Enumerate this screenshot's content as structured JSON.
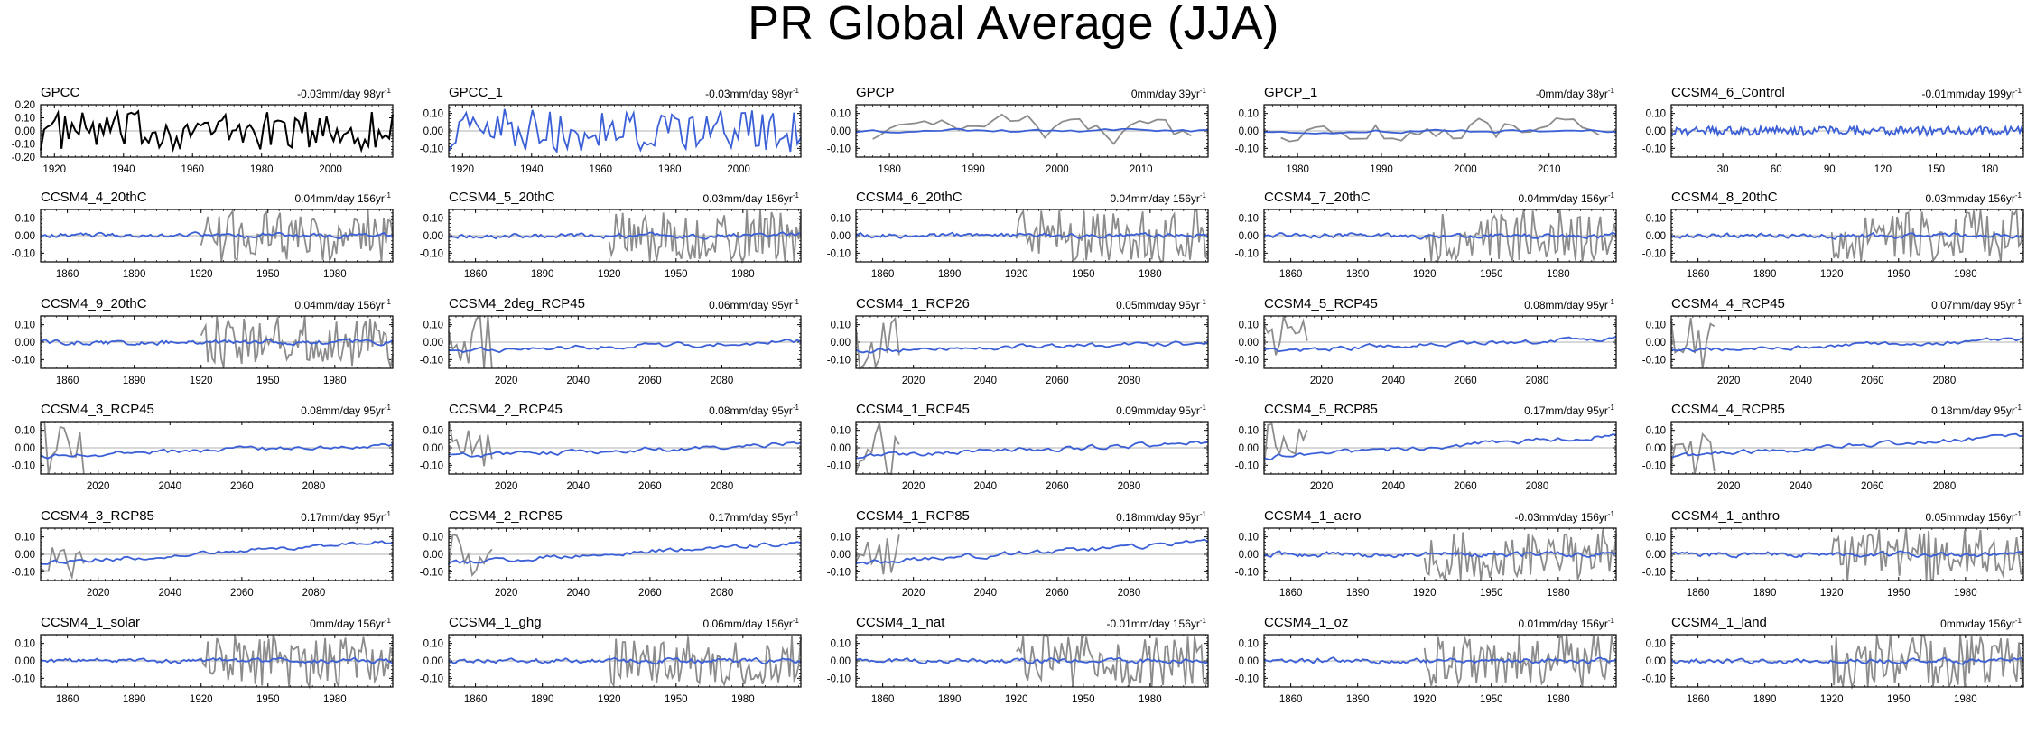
{
  "title": "PR Global Average (JJA)",
  "colors": {
    "obs": "#000000",
    "model": "#3b5fd6",
    "overlay": "#8c8c8c",
    "zero": "#b0b0b0"
  },
  "y_tick_labels_gpcc": [
    "0.20",
    "0.10",
    "0.00",
    "-0.10",
    "-0.20"
  ],
  "y_tick_labels_std": [
    "0.10",
    "0.00",
    "-0.10"
  ],
  "chart_data": [
    {
      "name": "GPCC",
      "trend": "-0.03mm/day 98yr",
      "trend_sup": "-1",
      "type": "line",
      "x_range": [
        1916,
        2018
      ],
      "x_ticks": [
        "1920",
        "1940",
        "1960",
        "1980",
        "2000"
      ],
      "ylim": [
        -0.2,
        0.2
      ],
      "obs_only": true
    },
    {
      "name": "GPCC_1",
      "trend": "-0.03mm/day 98yr",
      "trend_sup": "-1",
      "type": "line",
      "x_range": [
        1916,
        2018
      ],
      "x_ticks": [
        "1920",
        "1940",
        "1960",
        "1980",
        "2000"
      ],
      "ylim": [
        -0.15,
        0.15
      ],
      "model_only": true
    },
    {
      "name": "GPCP",
      "trend": "0mm/day 39yr",
      "trend_sup": "-1",
      "type": "line",
      "x_range": [
        1976,
        2018
      ],
      "x_ticks": [
        "1980",
        "1990",
        "2000",
        "2010"
      ],
      "ylim": [
        -0.15,
        0.15
      ]
    },
    {
      "name": "GPCP_1",
      "trend": "-0mm/day 38yr",
      "trend_sup": "-1",
      "type": "line",
      "x_range": [
        1976,
        2018
      ],
      "x_ticks": [
        "1980",
        "1990",
        "2000",
        "2010"
      ],
      "ylim": [
        -0.15,
        0.15
      ]
    },
    {
      "name": "CCSM4_6_Control",
      "trend": "-0.01mm/day 199yr",
      "trend_sup": "-1",
      "type": "line",
      "x_range": [
        1,
        199
      ],
      "x_ticks": [
        "30",
        "60",
        "90",
        "120",
        "150",
        "180"
      ],
      "ylim": [
        -0.15,
        0.15
      ],
      "model_only": true
    },
    {
      "name": "CCSM4_4_20thC",
      "trend": "0.04mm/day 156yr",
      "trend_sup": "-1",
      "type": "line",
      "x_range": [
        1848,
        2006
      ],
      "x_ticks": [
        "1860",
        "1890",
        "1920",
        "1950",
        "1980"
      ],
      "ylim": [
        -0.15,
        0.15
      ]
    },
    {
      "name": "CCSM4_5_20thC",
      "trend": "0.03mm/day 156yr",
      "trend_sup": "-1",
      "type": "line",
      "x_range": [
        1848,
        2006
      ],
      "x_ticks": [
        "1860",
        "1890",
        "1920",
        "1950",
        "1980"
      ],
      "ylim": [
        -0.15,
        0.15
      ]
    },
    {
      "name": "CCSM4_6_20thC",
      "trend": "0.04mm/day 156yr",
      "trend_sup": "-1",
      "type": "line",
      "x_range": [
        1848,
        2006
      ],
      "x_ticks": [
        "1860",
        "1890",
        "1920",
        "1950",
        "1980"
      ],
      "ylim": [
        -0.15,
        0.15
      ]
    },
    {
      "name": "CCSM4_7_20thC",
      "trend": "0.04mm/day 156yr",
      "trend_sup": "-1",
      "type": "line",
      "x_range": [
        1848,
        2006
      ],
      "x_ticks": [
        "1860",
        "1890",
        "1920",
        "1950",
        "1980"
      ],
      "ylim": [
        -0.15,
        0.15
      ]
    },
    {
      "name": "CCSM4_8_20thC",
      "trend": "0.03mm/day 156yr",
      "trend_sup": "-1",
      "type": "line",
      "x_range": [
        1848,
        2006
      ],
      "x_ticks": [
        "1860",
        "1890",
        "1920",
        "1950",
        "1980"
      ],
      "ylim": [
        -0.15,
        0.15
      ]
    },
    {
      "name": "CCSM4_9_20thC",
      "trend": "0.04mm/day 156yr",
      "trend_sup": "-1",
      "type": "line",
      "x_range": [
        1848,
        2006
      ],
      "x_ticks": [
        "1860",
        "1890",
        "1920",
        "1950",
        "1980"
      ],
      "ylim": [
        -0.15,
        0.15
      ]
    },
    {
      "name": "CCSM4_2deg_RCP45",
      "trend": "0.06mm/day 95yr",
      "trend_sup": "-1",
      "type": "line",
      "x_range": [
        2004,
        2102
      ],
      "x_ticks": [
        "2020",
        "2040",
        "2060",
        "2080"
      ],
      "ylim": [
        -0.15,
        0.15
      ]
    },
    {
      "name": "CCSM4_1_RCP26",
      "trend": "0.05mm/day 95yr",
      "trend_sup": "-1",
      "type": "line",
      "x_range": [
        2004,
        2102
      ],
      "x_ticks": [
        "2020",
        "2040",
        "2060",
        "2080"
      ],
      "ylim": [
        -0.15,
        0.15
      ]
    },
    {
      "name": "CCSM4_5_RCP45",
      "trend": "0.08mm/day 95yr",
      "trend_sup": "-1",
      "type": "line",
      "x_range": [
        2004,
        2102
      ],
      "x_ticks": [
        "2020",
        "2040",
        "2060",
        "2080"
      ],
      "ylim": [
        -0.15,
        0.15
      ]
    },
    {
      "name": "CCSM4_4_RCP45",
      "trend": "0.07mm/day 95yr",
      "trend_sup": "-1",
      "type": "line",
      "x_range": [
        2004,
        2102
      ],
      "x_ticks": [
        "2020",
        "2040",
        "2060",
        "2080"
      ],
      "ylim": [
        -0.15,
        0.15
      ]
    },
    {
      "name": "CCSM4_3_RCP45",
      "trend": "0.08mm/day 95yr",
      "trend_sup": "-1",
      "type": "line",
      "x_range": [
        2004,
        2102
      ],
      "x_ticks": [
        "2020",
        "2040",
        "2060",
        "2080"
      ],
      "ylim": [
        -0.15,
        0.15
      ]
    },
    {
      "name": "CCSM4_2_RCP45",
      "trend": "0.08mm/day 95yr",
      "trend_sup": "-1",
      "type": "line",
      "x_range": [
        2004,
        2102
      ],
      "x_ticks": [
        "2020",
        "2040",
        "2060",
        "2080"
      ],
      "ylim": [
        -0.15,
        0.15
      ]
    },
    {
      "name": "CCSM4_1_RCP45",
      "trend": "0.09mm/day 95yr",
      "trend_sup": "-1",
      "type": "line",
      "x_range": [
        2004,
        2102
      ],
      "x_ticks": [
        "2020",
        "2040",
        "2060",
        "2080"
      ],
      "ylim": [
        -0.15,
        0.15
      ]
    },
    {
      "name": "CCSM4_5_RCP85",
      "trend": "0.17mm/day 95yr",
      "trend_sup": "-1",
      "type": "line",
      "x_range": [
        2004,
        2102
      ],
      "x_ticks": [
        "2020",
        "2040",
        "2060",
        "2080"
      ],
      "ylim": [
        -0.15,
        0.15
      ]
    },
    {
      "name": "CCSM4_4_RCP85",
      "trend": "0.18mm/day 95yr",
      "trend_sup": "-1",
      "type": "line",
      "x_range": [
        2004,
        2102
      ],
      "x_ticks": [
        "2020",
        "2040",
        "2060",
        "2080"
      ],
      "ylim": [
        -0.15,
        0.15
      ]
    },
    {
      "name": "CCSM4_3_RCP85",
      "trend": "0.17mm/day 95yr",
      "trend_sup": "-1",
      "type": "line",
      "x_range": [
        2004,
        2102
      ],
      "x_ticks": [
        "2020",
        "2040",
        "2060",
        "2080"
      ],
      "ylim": [
        -0.15,
        0.15
      ]
    },
    {
      "name": "CCSM4_2_RCP85",
      "trend": "0.17mm/day 95yr",
      "trend_sup": "-1",
      "type": "line",
      "x_range": [
        2004,
        2102
      ],
      "x_ticks": [
        "2020",
        "2040",
        "2060",
        "2080"
      ],
      "ylim": [
        -0.15,
        0.15
      ]
    },
    {
      "name": "CCSM4_1_RCP85",
      "trend": "0.18mm/day 95yr",
      "trend_sup": "-1",
      "type": "line",
      "x_range": [
        2004,
        2102
      ],
      "x_ticks": [
        "2020",
        "2040",
        "2060",
        "2080"
      ],
      "ylim": [
        -0.15,
        0.15
      ]
    },
    {
      "name": "CCSM4_1_aero",
      "trend": "-0.03mm/day 156yr",
      "trend_sup": "-1",
      "type": "line",
      "x_range": [
        1848,
        2006
      ],
      "x_ticks": [
        "1860",
        "1890",
        "1920",
        "1950",
        "1980"
      ],
      "ylim": [
        -0.15,
        0.15
      ]
    },
    {
      "name": "CCSM4_1_anthro",
      "trend": "0.05mm/day 156yr",
      "trend_sup": "-1",
      "type": "line",
      "x_range": [
        1848,
        2006
      ],
      "x_ticks": [
        "1860",
        "1890",
        "1920",
        "1950",
        "1980"
      ],
      "ylim": [
        -0.15,
        0.15
      ]
    },
    {
      "name": "CCSM4_1_solar",
      "trend": "0mm/day 156yr",
      "trend_sup": "-1",
      "type": "line",
      "x_range": [
        1848,
        2006
      ],
      "x_ticks": [
        "1860",
        "1890",
        "1920",
        "1950",
        "1980"
      ],
      "ylim": [
        -0.15,
        0.15
      ]
    },
    {
      "name": "CCSM4_1_ghg",
      "trend": "0.06mm/day 156yr",
      "trend_sup": "-1",
      "type": "line",
      "x_range": [
        1848,
        2006
      ],
      "x_ticks": [
        "1860",
        "1890",
        "1920",
        "1950",
        "1980"
      ],
      "ylim": [
        -0.15,
        0.15
      ]
    },
    {
      "name": "CCSM4_1_nat",
      "trend": "-0.01mm/day 156yr",
      "trend_sup": "-1",
      "type": "line",
      "x_range": [
        1848,
        2006
      ],
      "x_ticks": [
        "1860",
        "1890",
        "1920",
        "1950",
        "1980"
      ],
      "ylim": [
        -0.15,
        0.15
      ]
    },
    {
      "name": "CCSM4_1_oz",
      "trend": "0.01mm/day 156yr",
      "trend_sup": "-1",
      "type": "line",
      "x_range": [
        1848,
        2006
      ],
      "x_ticks": [
        "1860",
        "1890",
        "1920",
        "1950",
        "1980"
      ],
      "ylim": [
        -0.15,
        0.15
      ]
    },
    {
      "name": "CCSM4_1_land",
      "trend": "0mm/day 156yr",
      "trend_sup": "-1",
      "type": "line",
      "x_range": [
        1848,
        2006
      ],
      "x_ticks": [
        "1860",
        "1890",
        "1920",
        "1950",
        "1980"
      ],
      "ylim": [
        -0.15,
        0.15
      ]
    }
  ]
}
